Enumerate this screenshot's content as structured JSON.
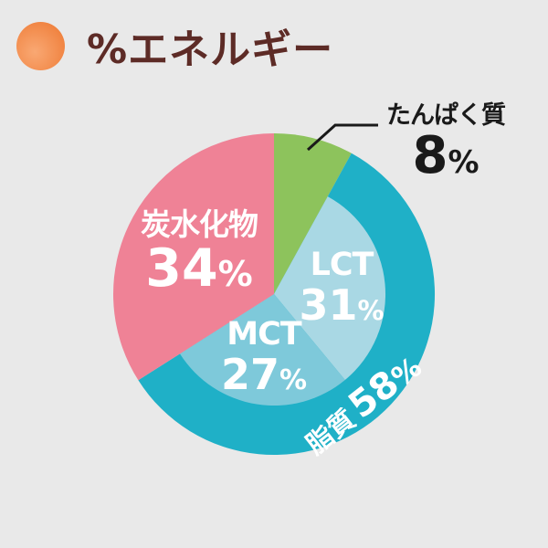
{
  "header": {
    "title": "%エネルギー",
    "bullet_icon": "orange-circle",
    "title_color": "#5d2b26",
    "bullet_color": "#f0823f"
  },
  "colors": {
    "background": "#e9e9e9",
    "protein_green": "#8dc35c",
    "fat_teal": "#1fb0c7",
    "lct_light_blue": "#a9d8e4",
    "mct_blue": "#7ec9da",
    "carb_pink": "#ef8296",
    "label_white": "#ffffff",
    "label_dark": "#1a1a1a"
  },
  "chart_data": {
    "type": "pie",
    "title": "%エネルギー",
    "direction": "clockwise",
    "start_angle_deg": 0,
    "legend_position": "none",
    "slices": [
      {
        "id": "protein",
        "label": "たんぱく質",
        "value_pct": 8,
        "color": "#8dc35c",
        "label_placement": "outside-callout"
      },
      {
        "id": "fat",
        "label": "脂質",
        "value_pct": 58,
        "color": "#1fb0c7",
        "label_placement": "on-ring-rotated",
        "sub_slices": [
          {
            "id": "lct",
            "label": "LCT",
            "value_pct": 31,
            "color": "#a9d8e4"
          },
          {
            "id": "mct",
            "label": "MCT",
            "value_pct": 27,
            "color": "#7ec9da"
          }
        ]
      },
      {
        "id": "carb",
        "label": "炭水化物",
        "value_pct": 34,
        "color": "#ef8296",
        "label_placement": "inside"
      }
    ]
  },
  "labels": {
    "protein": {
      "name": "たんぱく質",
      "value": "8",
      "pct": "%"
    },
    "carb": {
      "name": "炭水化物",
      "value": "34",
      "pct": "%"
    },
    "lct": {
      "name": "LCT",
      "value": "31",
      "pct": "%"
    },
    "mct": {
      "name": "MCT",
      "value": "27",
      "pct": "%"
    },
    "fat": {
      "name": "脂質",
      "value": "58",
      "pct": "%"
    }
  }
}
